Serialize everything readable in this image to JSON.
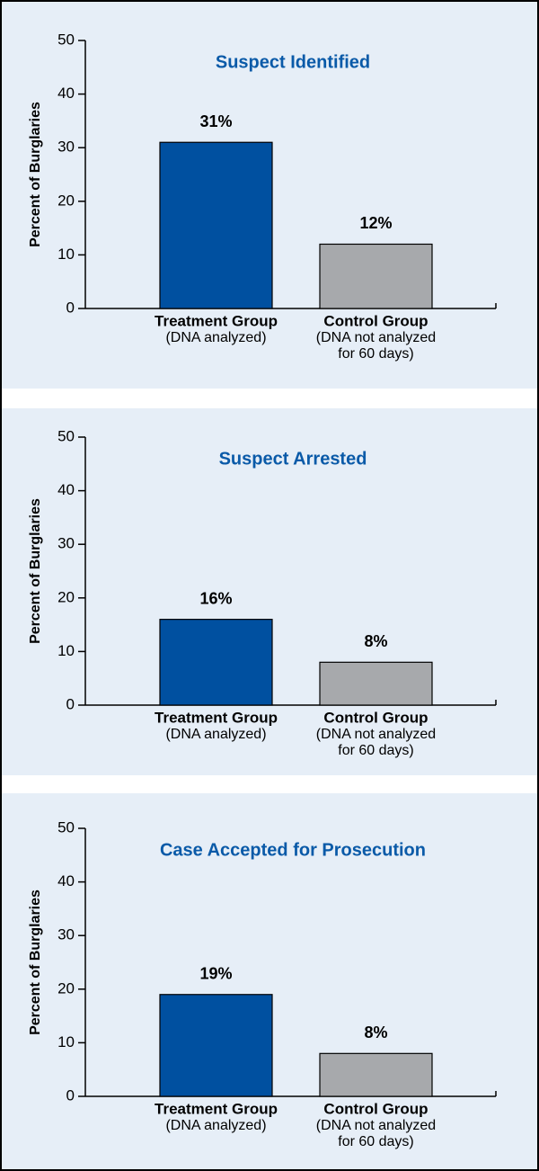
{
  "chart_data": [
    {
      "type": "bar",
      "title": "Suspect Identified",
      "y_label": "Percent of Burglaries",
      "categories": [
        "Treatment Group",
        "Control Group"
      ],
      "category_notes": [
        [
          "(DNA analyzed)"
        ],
        [
          "(DNA not analyzed",
          "for 60 days)"
        ]
      ],
      "values": [
        31,
        12
      ],
      "value_labels": [
        "31%",
        "12%"
      ],
      "colors": [
        "#0050a0",
        "#a7a9ac"
      ],
      "ylim": [
        0,
        50
      ],
      "yticks": [
        0,
        10,
        20,
        30,
        40,
        50
      ]
    },
    {
      "type": "bar",
      "title": "Suspect Arrested",
      "y_label": "Percent of Burglaries",
      "categories": [
        "Treatment Group",
        "Control Group"
      ],
      "category_notes": [
        [
          "(DNA analyzed)"
        ],
        [
          "(DNA not analyzed",
          "for 60 days)"
        ]
      ],
      "values": [
        16,
        8
      ],
      "value_labels": [
        "16%",
        "8%"
      ],
      "colors": [
        "#0050a0",
        "#a7a9ac"
      ],
      "ylim": [
        0,
        50
      ],
      "yticks": [
        0,
        10,
        20,
        30,
        40,
        50
      ]
    },
    {
      "type": "bar",
      "title": "Case Accepted for Prosecution",
      "y_label": "Percent of Burglaries",
      "categories": [
        "Treatment Group",
        "Control Group"
      ],
      "category_notes": [
        [
          "(DNA analyzed)"
        ],
        [
          "(DNA not analyzed",
          "for 60 days)"
        ]
      ],
      "values": [
        19,
        8
      ],
      "value_labels": [
        "19%",
        "8%"
      ],
      "colors": [
        "#0050a0",
        "#a7a9ac"
      ],
      "ylim": [
        0,
        50
      ],
      "yticks": [
        0,
        10,
        20,
        30,
        40,
        50
      ]
    }
  ]
}
